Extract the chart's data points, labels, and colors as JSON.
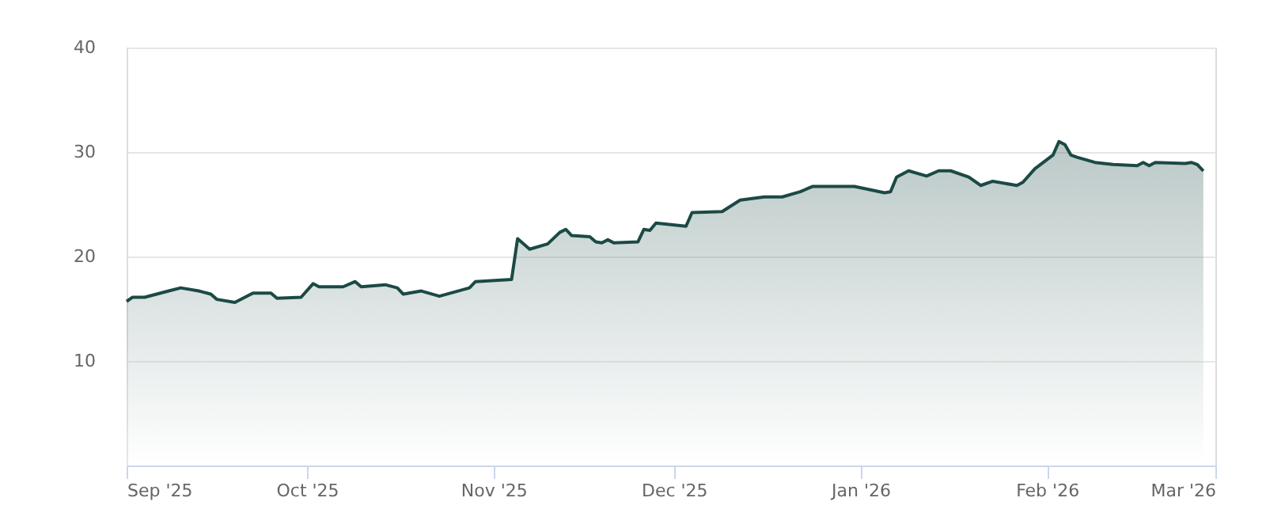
{
  "chart_data": {
    "type": "area",
    "xlim": [
      "2025-09-01",
      "2026-03-01"
    ],
    "xticks": [
      {
        "value": "2025-09-01",
        "label": "Sep '25"
      },
      {
        "value": "2025-10-01",
        "label": "Oct '25"
      },
      {
        "value": "2025-11-01",
        "label": "Nov '25"
      },
      {
        "value": "2025-12-01",
        "label": "Dec '25"
      },
      {
        "value": "2026-01-01",
        "label": "Jan '26"
      },
      {
        "value": "2026-02-01",
        "label": "Feb '26"
      },
      {
        "value": "2026-03-01",
        "label": "Mar '26"
      }
    ],
    "ylim": [
      0,
      40
    ],
    "yticks": [
      10,
      20,
      30,
      40
    ],
    "grid": "y",
    "legend": false,
    "x": [
      "2025-09-01",
      "2025-09-02",
      "2025-09-04",
      "2025-09-06",
      "2025-09-08",
      "2025-09-10",
      "2025-09-13",
      "2025-09-15",
      "2025-09-16",
      "2025-09-19",
      "2025-09-22",
      "2025-09-25",
      "2025-09-26",
      "2025-09-30",
      "2025-10-02",
      "2025-10-03",
      "2025-10-07",
      "2025-10-09",
      "2025-10-10",
      "2025-10-14",
      "2025-10-16",
      "2025-10-17",
      "2025-10-20",
      "2025-10-23",
      "2025-10-28",
      "2025-10-29",
      "2025-11-04",
      "2025-11-05",
      "2025-11-07",
      "2025-11-10",
      "2025-11-12",
      "2025-11-13",
      "2025-11-14",
      "2025-11-17",
      "2025-11-18",
      "2025-11-19",
      "2025-11-20",
      "2025-11-21",
      "2025-11-25",
      "2025-11-26",
      "2025-11-27",
      "2025-11-28",
      "2025-12-03",
      "2025-12-04",
      "2025-12-09",
      "2025-12-12",
      "2025-12-16",
      "2025-12-19",
      "2025-12-22",
      "2025-12-24",
      "2025-12-31",
      "2026-01-05",
      "2026-01-06",
      "2026-01-07",
      "2026-01-09",
      "2026-01-12",
      "2026-01-14",
      "2026-01-16",
      "2026-01-19",
      "2026-01-21",
      "2026-01-23",
      "2026-01-27",
      "2026-01-28",
      "2026-01-30",
      "2026-02-02",
      "2026-02-03",
      "2026-02-04",
      "2026-02-05",
      "2026-02-06",
      "2026-02-09",
      "2026-02-12",
      "2026-02-16",
      "2026-02-17",
      "2026-02-18",
      "2026-02-19",
      "2026-02-24",
      "2026-02-25",
      "2026-02-26",
      "2026-02-27"
    ],
    "series": [
      {
        "color": "#1b4a45",
        "values": [
          15.7,
          16.1,
          16.1,
          16.4,
          16.7,
          17.0,
          16.7,
          16.4,
          15.9,
          15.6,
          16.5,
          16.5,
          16.0,
          16.1,
          17.4,
          17.1,
          17.1,
          17.6,
          17.1,
          17.3,
          17.0,
          16.4,
          16.7,
          16.2,
          17.0,
          17.6,
          17.8,
          21.7,
          20.7,
          21.2,
          22.3,
          22.6,
          22.0,
          21.9,
          21.4,
          21.3,
          21.6,
          21.3,
          21.4,
          22.6,
          22.5,
          23.2,
          22.9,
          24.2,
          24.3,
          25.4,
          25.7,
          25.7,
          26.2,
          26.7,
          26.7,
          26.1,
          26.2,
          27.6,
          28.2,
          27.7,
          28.2,
          28.2,
          27.6,
          26.8,
          27.2,
          26.8,
          27.1,
          28.4,
          29.7,
          31.0,
          30.7,
          29.7,
          29.5,
          29.0,
          28.8,
          28.7,
          29.0,
          28.7,
          29.0,
          28.9,
          29.0,
          28.8,
          28.2
        ]
      }
    ]
  }
}
